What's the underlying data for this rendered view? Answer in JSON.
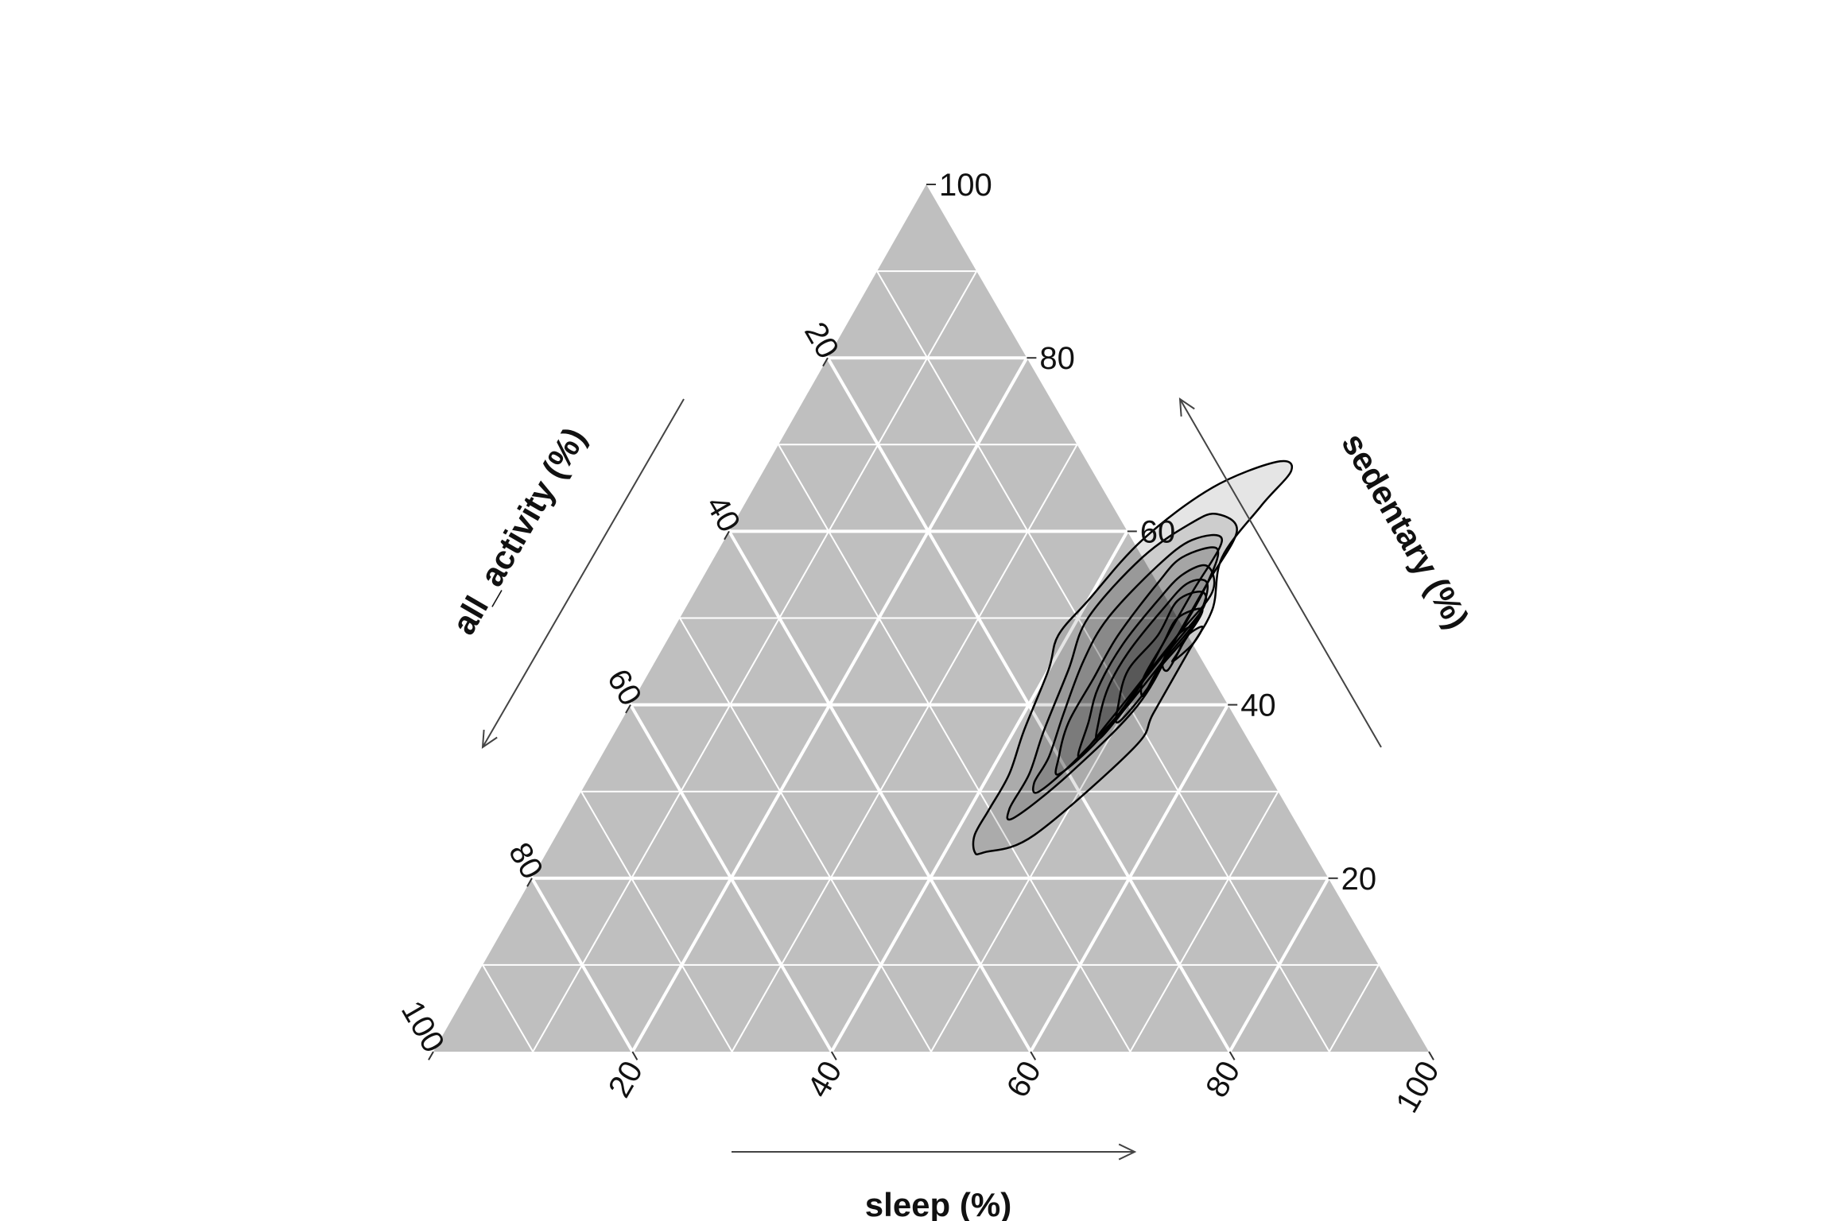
{
  "chart_data": {
    "type": "ternary-density-contour",
    "axes": {
      "top": {
        "label": "sedentary (%)",
        "ticks": [
          "20",
          "40",
          "60",
          "80",
          "100"
        ]
      },
      "left": {
        "label": "all_activity (%)",
        "ticks": [
          "20",
          "40",
          "60",
          "80",
          "100"
        ]
      },
      "right": {
        "label": "sleep (%)",
        "ticks": [
          "20",
          "40",
          "60",
          "80",
          "100"
        ]
      }
    },
    "range": [
      0,
      100
    ],
    "grid": {
      "major_step": 20,
      "minor_step": 10
    },
    "colors": {
      "background": "#bfbfbf",
      "grid": "#ffffff",
      "contour_line": "#000000",
      "density_fill": "#000000"
    },
    "density": {
      "peak": {
        "sedentary": 47,
        "sleep": 52,
        "all_activity": 1
      },
      "contours": [
        {
          "level": 1,
          "points": [
            [
              23,
              44,
              33
            ],
            [
              25,
              48,
              27
            ],
            [
              35,
              53,
              12
            ],
            [
              39,
              53,
              8
            ],
            [
              46,
              53,
              1
            ],
            [
              51,
              53,
              -4
            ],
            [
              57,
              51,
              -8
            ],
            [
              63,
              52,
              -15
            ],
            [
              67,
              53,
              -20
            ],
            [
              68,
              51,
              -19
            ],
            [
              65,
              46,
              -11
            ],
            [
              59,
              42,
              -1
            ],
            [
              52,
              40,
              8
            ],
            [
              48,
              39,
              13
            ],
            [
              44,
              40,
              16
            ],
            [
              37,
              41,
              22
            ],
            [
              32,
              42,
              26
            ],
            [
              28,
              42,
              30
            ],
            [
              25,
              42,
              33
            ],
            [
              23,
              43,
              34
            ]
          ]
        },
        {
          "level": 2,
          "points": [
            [
              27,
              45,
              28
            ],
            [
              32,
              48,
              20
            ],
            [
              40,
              51,
              9
            ],
            [
              48,
              51,
              1
            ],
            [
              54,
              51,
              -5
            ],
            [
              60,
              51,
              -11
            ],
            [
              62,
              48,
              -10
            ],
            [
              61,
              46,
              -7
            ],
            [
              57,
              43,
              0
            ],
            [
              50,
              41,
              9
            ],
            [
              44,
              42,
              14
            ],
            [
              37,
              43,
              20
            ],
            [
              32,
              44,
              24
            ],
            [
              28,
              44,
              28
            ]
          ]
        },
        {
          "level": 3,
          "points": [
            [
              30,
              46,
              24
            ],
            [
              34,
              48,
              18
            ],
            [
              41,
              50,
              9
            ],
            [
              47,
              50,
              3
            ],
            [
              53,
              50,
              -3
            ],
            [
              59,
              50,
              -9
            ],
            [
              59,
              47,
              -6
            ],
            [
              56,
              45,
              -1
            ],
            [
              50,
              43,
              7
            ],
            [
              45,
              43,
              12
            ],
            [
              39,
              44,
              17
            ],
            [
              34,
              45,
              21
            ],
            [
              31,
              45,
              24
            ]
          ]
        },
        {
          "level": 4,
          "points": [
            [
              32,
              47,
              21
            ],
            [
              36,
              49,
              15
            ],
            [
              42,
              50,
              8
            ],
            [
              48,
              51,
              1
            ],
            [
              54,
              51,
              -5
            ],
            [
              58,
              50,
              -8
            ],
            [
              57,
              47,
              -4
            ],
            [
              54,
              46,
              0
            ],
            [
              48,
              45,
              7
            ],
            [
              43,
              45,
              12
            ],
            [
              38,
              45,
              17
            ],
            [
              34,
              46,
              20
            ]
          ]
        },
        {
          "level": 5,
          "points": [
            [
              34,
              48,
              18
            ],
            [
              38,
              49,
              13
            ],
            [
              43,
              50,
              7
            ],
            [
              48,
              51,
              1
            ],
            [
              53,
              52,
              -5
            ],
            [
              56,
              50,
              -6
            ],
            [
              55,
              48,
              -3
            ],
            [
              52,
              47,
              1
            ],
            [
              47,
              46,
              7
            ],
            [
              42,
              46,
              12
            ],
            [
              38,
              47,
              15
            ]
          ]
        },
        {
          "level": 6,
          "points": [
            [
              36,
              49,
              15
            ],
            [
              40,
              50,
              10
            ],
            [
              45,
              51,
              4
            ],
            [
              50,
              52,
              -2
            ],
            [
              54,
              51,
              -5
            ],
            [
              54,
              49,
              -3
            ],
            [
              51,
              48,
              1
            ],
            [
              46,
              47,
              7
            ],
            [
              42,
              47,
              11
            ],
            [
              38,
              48,
              14
            ]
          ]
        },
        {
          "level": 7,
          "points": [
            [
              38,
              50,
              12
            ],
            [
              42,
              51,
              7
            ],
            [
              46,
              51,
              3
            ],
            [
              51,
              52,
              -3
            ],
            [
              53,
              51,
              -4
            ],
            [
              52,
              49,
              -1
            ],
            [
              48,
              49,
              3
            ],
            [
              44,
              48,
              8
            ],
            [
              40,
              49,
              11
            ]
          ]
        },
        {
          "level": 8,
          "points": [
            [
              41,
              51,
              8
            ],
            [
              44,
              51,
              5
            ],
            [
              48,
              52,
              0
            ],
            [
              51,
              52,
              -3
            ],
            [
              50,
              50,
              0
            ],
            [
              47,
              50,
              3
            ],
            [
              43,
              50,
              7
            ]
          ]
        },
        {
          "level": 9,
          "points": [
            [
              44,
              52,
              4
            ],
            [
              47,
              52,
              1
            ],
            [
              49,
              52,
              -1
            ],
            [
              48,
              51,
              1
            ],
            [
              45,
              51,
              4
            ]
          ]
        },
        {
          "level": 10,
          "points": [
            [
              45,
              52,
              3
            ],
            [
              47,
              53,
              0
            ],
            [
              49,
              53,
              -2
            ],
            [
              48,
              52,
              0
            ],
            [
              46,
              52,
              2
            ]
          ]
        }
      ]
    }
  }
}
